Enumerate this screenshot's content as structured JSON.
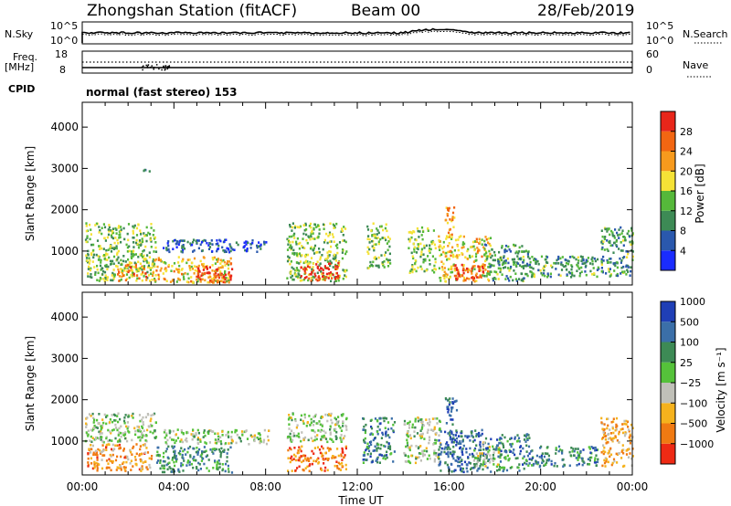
{
  "header": {
    "station": "Zhongshan Station (fitACF)",
    "beam": "Beam 00",
    "date": "28/Feb/2019",
    "cpid_label": "CPID",
    "cpid_text": "normal (fast stereo) 153"
  },
  "noise_panel": {
    "left_label": "N.Sky",
    "right_label": "N.Search",
    "tick_top": "10^5",
    "tick_bottom": "10^0",
    "right_tick_top": "10^5",
    "right_tick_bottom": "10^0"
  },
  "freq_panel": {
    "left_label": "Freq.",
    "left_unit": "[MHz]",
    "right_label": "Nave",
    "left_ticks": [
      "18",
      "8"
    ],
    "right_ticks": [
      "60",
      "0"
    ]
  },
  "time_axis": {
    "label": "Time UT",
    "ticks": [
      "00:00",
      "04:00",
      "08:00",
      "12:00",
      "16:00",
      "20:00",
      "00:00"
    ]
  },
  "chart_data": [
    {
      "type": "heatmap",
      "name": "power",
      "ylabel": "Slant Range [km]",
      "ylim": [
        180,
        4600
      ],
      "xlim_hours": [
        0,
        24
      ],
      "yticks": [
        "1000",
        "2000",
        "3000",
        "4000"
      ],
      "yticks_values": [
        1000,
        2000,
        3000,
        4000
      ],
      "colorbar_label": "Power [dB]",
      "colorbar_ticks": [
        "4",
        "8",
        "12",
        "16",
        "20",
        "24",
        "28"
      ],
      "colorbar_colors": [
        "#1a2cff",
        "#2a58ad",
        "#3d8a55",
        "#55b83a",
        "#f5e236",
        "#f79a1d",
        "#f26612",
        "#e8261a"
      ],
      "scatter_regions": [
        {
          "hours": [
            0.1,
            3.2
          ],
          "range_km": [
            300,
            1700
          ],
          "level": 0.45
        },
        {
          "hours": [
            1.5,
            2.8
          ],
          "range_km": [
            300,
            700
          ],
          "level": 0.75
        },
        {
          "hours": [
            3.0,
            6.5
          ],
          "range_km": [
            260,
            900
          ],
          "level": 0.6
        },
        {
          "hours": [
            5.0,
            6.5
          ],
          "range_km": [
            260,
            650
          ],
          "level": 0.9
        },
        {
          "hours": [
            3.5,
            8.0
          ],
          "range_km": [
            1000,
            1300
          ],
          "level": 0.2
        },
        {
          "hours": [
            8.9,
            11.5
          ],
          "range_km": [
            300,
            1700
          ],
          "level": 0.45
        },
        {
          "hours": [
            9.5,
            11.2
          ],
          "range_km": [
            300,
            750
          ],
          "level": 0.95
        },
        {
          "hours": [
            12.4,
            13.4
          ],
          "range_km": [
            600,
            1700
          ],
          "level": 0.45
        },
        {
          "hours": [
            14.2,
            15.4
          ],
          "range_km": [
            500,
            1600
          ],
          "level": 0.45
        },
        {
          "hours": [
            15.5,
            17.8
          ],
          "range_km": [
            280,
            1400
          ],
          "level": 0.6
        },
        {
          "hours": [
            16.2,
            17.5
          ],
          "range_km": [
            280,
            700
          ],
          "level": 0.9
        },
        {
          "hours": [
            15.8,
            16.2
          ],
          "range_km": [
            1400,
            2100
          ],
          "level": 0.7
        },
        {
          "hours": [
            17.5,
            19.5
          ],
          "range_km": [
            300,
            1200
          ],
          "level": 0.35
        },
        {
          "hours": [
            19.5,
            22.5
          ],
          "range_km": [
            400,
            900
          ],
          "level": 0.35
        },
        {
          "hours": [
            22.6,
            24.0
          ],
          "range_km": [
            400,
            1600
          ],
          "level": 0.35
        },
        {
          "hours": [
            2.5,
            3.1
          ],
          "range_km": [
            2950,
            3050
          ],
          "level": 0.2
        }
      ]
    },
    {
      "type": "heatmap",
      "name": "velocity",
      "ylabel": "Slant Range [km]",
      "ylim": [
        180,
        4600
      ],
      "xlim_hours": [
        0,
        24
      ],
      "yticks": [
        "1000",
        "2000",
        "3000",
        "4000"
      ],
      "yticks_values": [
        1000,
        2000,
        3000,
        4000
      ],
      "colorbar_label": "Velocity [m s⁻¹]",
      "colorbar_ticks": [
        "1000",
        "500",
        "100",
        "25",
        "−25",
        "−100",
        "−500",
        "−1000"
      ],
      "colorbar_colors": [
        "#1f3fb6",
        "#3b6fa8",
        "#3d8a55",
        "#55c23a",
        "#c0c0b8",
        "#f5b21d",
        "#f07a12",
        "#ee2a14"
      ],
      "scatter_regions": [
        {
          "hours": [
            0.1,
            3.2
          ],
          "range_km": [
            1000,
            1700
          ],
          "level": 0.5
        },
        {
          "hours": [
            0.2,
            3.0
          ],
          "range_km": [
            300,
            950
          ],
          "level": 0.25
        },
        {
          "hours": [
            3.2,
            6.5
          ],
          "range_km": [
            260,
            900
          ],
          "level": 0.7
        },
        {
          "hours": [
            3.5,
            8.2
          ],
          "range_km": [
            950,
            1300
          ],
          "level": 0.5
        },
        {
          "hours": [
            8.9,
            11.5
          ],
          "range_km": [
            300,
            900
          ],
          "level": 0.2
        },
        {
          "hours": [
            8.9,
            11.5
          ],
          "range_km": [
            1000,
            1700
          ],
          "level": 0.5
        },
        {
          "hours": [
            12.2,
            13.6
          ],
          "range_km": [
            500,
            1600
          ],
          "level": 0.75
        },
        {
          "hours": [
            14.0,
            15.6
          ],
          "range_km": [
            500,
            1600
          ],
          "level": 0.5
        },
        {
          "hours": [
            15.5,
            17.8
          ],
          "range_km": [
            280,
            1300
          ],
          "level": 0.8
        },
        {
          "hours": [
            15.8,
            16.3
          ],
          "range_km": [
            1400,
            2100
          ],
          "level": 0.85
        },
        {
          "hours": [
            17.0,
            18.2
          ],
          "range_km": [
            400,
            1000
          ],
          "level": 0.5
        },
        {
          "hours": [
            18.0,
            19.5
          ],
          "range_km": [
            300,
            1200
          ],
          "level": 0.75
        },
        {
          "hours": [
            19.5,
            22.5
          ],
          "range_km": [
            400,
            900
          ],
          "level": 0.75
        },
        {
          "hours": [
            22.6,
            24.0
          ],
          "range_km": [
            400,
            1600
          ],
          "level": 0.3
        }
      ]
    }
  ]
}
